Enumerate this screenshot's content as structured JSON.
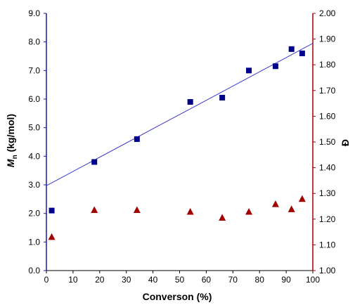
{
  "chart_data": {
    "type": "scatter",
    "xlabel": "Converson (%)",
    "ylabel_left": "Mn (kg/mol)",
    "ylabel_left_parts": {
      "main": "M",
      "sub": "n",
      "rest": " (kg/mol)"
    },
    "ylabel_right": "Đ",
    "xlim": [
      0,
      100
    ],
    "ylim_left": [
      0,
      9
    ],
    "ylim_right": [
      1.0,
      2.0
    ],
    "x_ticks": [
      "0",
      "10",
      "20",
      "30",
      "40",
      "50",
      "60",
      "70",
      "80",
      "90",
      "100"
    ],
    "y_left_ticks": [
      "0.0",
      "1.0",
      "2.0",
      "3.0",
      "4.0",
      "5.0",
      "6.0",
      "7.0",
      "8.0",
      "9.0"
    ],
    "y_right_ticks": [
      "1.00",
      "1.10",
      "1.20",
      "1.30",
      "1.40",
      "1.50",
      "1.60",
      "1.70",
      "1.80",
      "1.90",
      "2.00"
    ],
    "grid": false,
    "legend": "none",
    "colors": {
      "mn_series": "#00008b",
      "dispersity_series": "#a00000",
      "fit_line": "#3b3bd0",
      "left_axis": "#1a1aa0",
      "right_axis": "#a00000"
    },
    "series": [
      {
        "axis": "left",
        "marker": "square",
        "points": [
          {
            "x": 2,
            "y": 2.1
          },
          {
            "x": 18,
            "y": 3.8
          },
          {
            "x": 34,
            "y": 4.6
          },
          {
            "x": 54,
            "y": 5.9
          },
          {
            "x": 66,
            "y": 6.05
          },
          {
            "x": 76,
            "y": 7.0
          },
          {
            "x": 86,
            "y": 7.15
          },
          {
            "x": 92,
            "y": 7.75
          },
          {
            "x": 96,
            "y": 7.6
          }
        ]
      },
      {
        "axis": "right",
        "marker": "triangle",
        "points": [
          {
            "x": 2,
            "y": 1.13
          },
          {
            "x": 18,
            "y": 1.235
          },
          {
            "x": 34,
            "y": 1.235
          },
          {
            "x": 54,
            "y": 1.228
          },
          {
            "x": 66,
            "y": 1.205
          },
          {
            "x": 76,
            "y": 1.228
          },
          {
            "x": 86,
            "y": 1.258
          },
          {
            "x": 92,
            "y": 1.238
          },
          {
            "x": 96,
            "y": 1.278
          }
        ]
      }
    ],
    "fit_line": {
      "axis": "left",
      "x0": 0,
      "y0": 2.97,
      "x1": 100,
      "y1": 7.95
    }
  }
}
